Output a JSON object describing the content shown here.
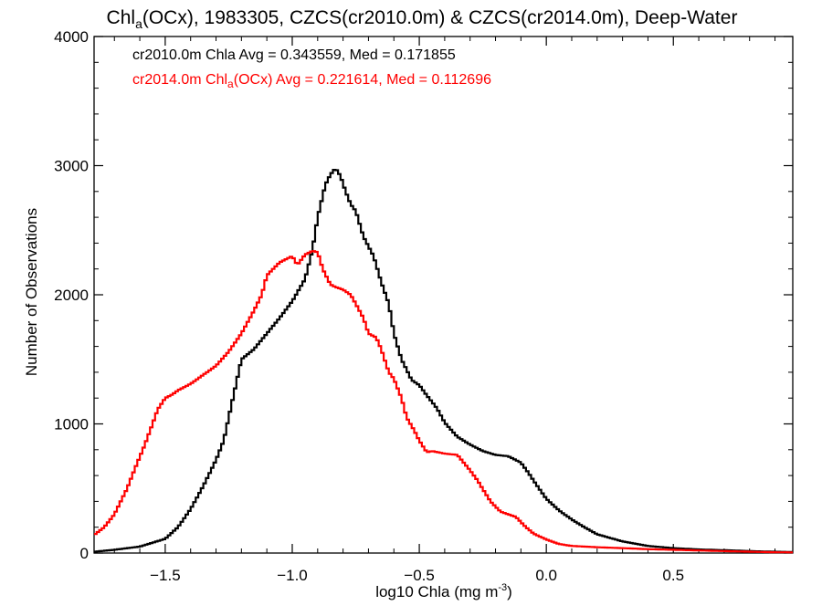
{
  "chart_data": {
    "type": "line",
    "step": true,
    "title": {
      "prefix": "Chl",
      "subscript": "a",
      "rest": "(OCx), 1983305, CZCS(cr2010.0m) & CZCS(cr2014.0m), Deep-Water"
    },
    "xlabel": {
      "main": "log10 Chla (mg m",
      "sup": "-3",
      "close": ")"
    },
    "ylabel": "Number of Observations",
    "xlim": [
      -1.78,
      0.97
    ],
    "ylim": [
      0,
      4000
    ],
    "xticks": [
      -1.5,
      -1.0,
      -0.5,
      0.0,
      0.5
    ],
    "xtick_labels": [
      "-1.5",
      "-1.0",
      "-0.5",
      "0.0",
      "0.5"
    ],
    "yticks": [
      0,
      1000,
      2000,
      3000,
      4000
    ],
    "ytick_labels": [
      "0",
      "1000",
      "2000",
      "3000",
      "4000"
    ],
    "grid": false,
    "legend_position": "top-left",
    "series": [
      {
        "legend": "cr2010.0m Chla Avg = 0.343559, Med = 0.171855",
        "color": "#000000",
        "points": [
          [
            -1.78,
            10
          ],
          [
            -1.7,
            25
          ],
          [
            -1.6,
            50
          ],
          [
            -1.5,
            110
          ],
          [
            -1.45,
            200
          ],
          [
            -1.4,
            340
          ],
          [
            -1.35,
            520
          ],
          [
            -1.3,
            720
          ],
          [
            -1.27,
            870
          ],
          [
            -1.25,
            1050
          ],
          [
            -1.22,
            1320
          ],
          [
            -1.2,
            1500
          ],
          [
            -1.15,
            1580
          ],
          [
            -1.1,
            1700
          ],
          [
            -1.05,
            1820
          ],
          [
            -1.0,
            1950
          ],
          [
            -0.95,
            2120
          ],
          [
            -0.92,
            2350
          ],
          [
            -0.9,
            2600
          ],
          [
            -0.87,
            2850
          ],
          [
            -0.85,
            2930
          ],
          [
            -0.83,
            2980
          ],
          [
            -0.81,
            2920
          ],
          [
            -0.79,
            2800
          ],
          [
            -0.77,
            2700
          ],
          [
            -0.75,
            2650
          ],
          [
            -0.72,
            2450
          ],
          [
            -0.68,
            2300
          ],
          [
            -0.65,
            2100
          ],
          [
            -0.62,
            1930
          ],
          [
            -0.6,
            1700
          ],
          [
            -0.57,
            1500
          ],
          [
            -0.53,
            1340
          ],
          [
            -0.5,
            1300
          ],
          [
            -0.47,
            1220
          ],
          [
            -0.43,
            1120
          ],
          [
            -0.4,
            1010
          ],
          [
            -0.35,
            900
          ],
          [
            -0.3,
            840
          ],
          [
            -0.25,
            790
          ],
          [
            -0.2,
            760
          ],
          [
            -0.15,
            750
          ],
          [
            -0.1,
            700
          ],
          [
            -0.07,
            620
          ],
          [
            -0.05,
            560
          ],
          [
            0.0,
            420
          ],
          [
            0.05,
            330
          ],
          [
            0.1,
            260
          ],
          [
            0.15,
            200
          ],
          [
            0.2,
            145
          ],
          [
            0.3,
            90
          ],
          [
            0.4,
            55
          ],
          [
            0.5,
            38
          ],
          [
            0.6,
            28
          ],
          [
            0.7,
            22
          ],
          [
            0.8,
            15
          ],
          [
            0.9,
            10
          ],
          [
            0.97,
            8
          ]
        ]
      },
      {
        "legend": "cr2014.0m Chl(OCx) Avg = 0.221614, Med = 0.112696",
        "legend_parts": {
          "a": "cr2014.0m Chl",
          "sub": "a",
          "b": "(OCx) Avg = 0.221614, Med = 0.112696"
        },
        "color": "#ff0000",
        "points": [
          [
            -1.78,
            140
          ],
          [
            -1.74,
            200
          ],
          [
            -1.7,
            300
          ],
          [
            -1.65,
            500
          ],
          [
            -1.62,
            650
          ],
          [
            -1.58,
            840
          ],
          [
            -1.55,
            1000
          ],
          [
            -1.53,
            1110
          ],
          [
            -1.5,
            1200
          ],
          [
            -1.47,
            1230
          ],
          [
            -1.45,
            1260
          ],
          [
            -1.4,
            1310
          ],
          [
            -1.35,
            1380
          ],
          [
            -1.3,
            1450
          ],
          [
            -1.25,
            1560
          ],
          [
            -1.2,
            1700
          ],
          [
            -1.15,
            1880
          ],
          [
            -1.12,
            2000
          ],
          [
            -1.1,
            2150
          ],
          [
            -1.05,
            2250
          ],
          [
            -1.0,
            2300
          ],
          [
            -0.98,
            2230
          ],
          [
            -0.95,
            2310
          ],
          [
            -0.92,
            2340
          ],
          [
            -0.9,
            2330
          ],
          [
            -0.88,
            2200
          ],
          [
            -0.85,
            2080
          ],
          [
            -0.83,
            2060
          ],
          [
            -0.8,
            2040
          ],
          [
            -0.77,
            2000
          ],
          [
            -0.75,
            1930
          ],
          [
            -0.72,
            1820
          ],
          [
            -0.7,
            1700
          ],
          [
            -0.67,
            1670
          ],
          [
            -0.65,
            1580
          ],
          [
            -0.62,
            1400
          ],
          [
            -0.6,
            1350
          ],
          [
            -0.57,
            1200
          ],
          [
            -0.55,
            1050
          ],
          [
            -0.52,
            950
          ],
          [
            -0.5,
            870
          ],
          [
            -0.47,
            780
          ],
          [
            -0.45,
            790
          ],
          [
            -0.4,
            770
          ],
          [
            -0.35,
            760
          ],
          [
            -0.3,
            640
          ],
          [
            -0.27,
            560
          ],
          [
            -0.22,
            400
          ],
          [
            -0.18,
            320
          ],
          [
            -0.12,
            280
          ],
          [
            -0.08,
            200
          ],
          [
            -0.05,
            150
          ],
          [
            0.0,
            105
          ],
          [
            0.05,
            70
          ],
          [
            0.1,
            55
          ],
          [
            0.2,
            45
          ],
          [
            0.3,
            38
          ],
          [
            0.4,
            30
          ],
          [
            0.5,
            25
          ],
          [
            0.6,
            20
          ],
          [
            0.7,
            15
          ],
          [
            0.8,
            10
          ],
          [
            0.9,
            6
          ],
          [
            0.97,
            5
          ]
        ]
      }
    ]
  }
}
